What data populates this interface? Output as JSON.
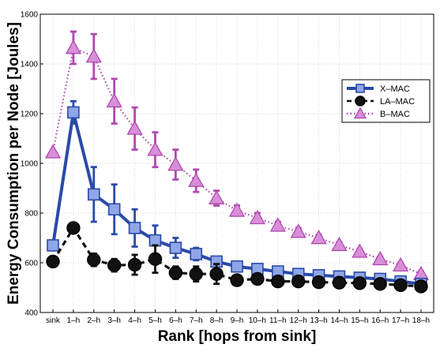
{
  "chart_data": {
    "type": "line",
    "xlabel": "Rank [hops from sink]",
    "ylabel": "Energy Consumption per Node [Joules]",
    "ylim": [
      400,
      1600
    ],
    "yticks": [
      400,
      600,
      800,
      1000,
      1200,
      1400,
      1600
    ],
    "grid": true,
    "legend_position": "top-right",
    "categories": [
      "sink",
      "1–h",
      "2–h",
      "3–h",
      "4–h",
      "5–h",
      "6–h",
      "7–h",
      "8–h",
      "9–h",
      "10–h",
      "11–h",
      "12–h",
      "13–h",
      "14–h",
      "15–h",
      "16–h",
      "17–h",
      "18–h"
    ],
    "series": [
      {
        "name": "X–MAC",
        "color": "#2a4aa8",
        "line": "solid",
        "marker": "square",
        "values": [
          670,
          1205,
          875,
          815,
          740,
          690,
          660,
          635,
          605,
          585,
          575,
          565,
          555,
          550,
          545,
          540,
          535,
          525,
          515
        ],
        "errors": [
          0,
          45,
          110,
          100,
          75,
          60,
          40,
          25,
          15,
          10,
          10,
          8,
          8,
          8,
          5,
          5,
          5,
          5,
          5
        ]
      },
      {
        "name": "LA–MAC",
        "color": "#111111",
        "line": "dashed",
        "marker": "circle",
        "values": [
          605,
          740,
          612,
          590,
          592,
          615,
          560,
          555,
          555,
          530,
          535,
          525,
          525,
          522,
          520,
          518,
          515,
          510,
          505
        ],
        "errors": [
          0,
          20,
          25,
          25,
          40,
          55,
          25,
          30,
          40,
          10,
          20,
          20,
          20,
          20,
          15,
          15,
          15,
          10,
          10
        ]
      },
      {
        "name": "B–MAC",
        "color": "#b048b0",
        "line": "dotted",
        "marker": "triangle",
        "values": [
          1045,
          1465,
          1430,
          1250,
          1140,
          1055,
          995,
          930,
          860,
          810,
          780,
          750,
          725,
          700,
          672,
          645,
          615,
          590,
          555
        ],
        "errors": [
          0,
          65,
          90,
          90,
          85,
          70,
          60,
          45,
          30,
          20,
          20,
          15,
          15,
          12,
          10,
          10,
          10,
          10,
          10
        ]
      }
    ]
  }
}
